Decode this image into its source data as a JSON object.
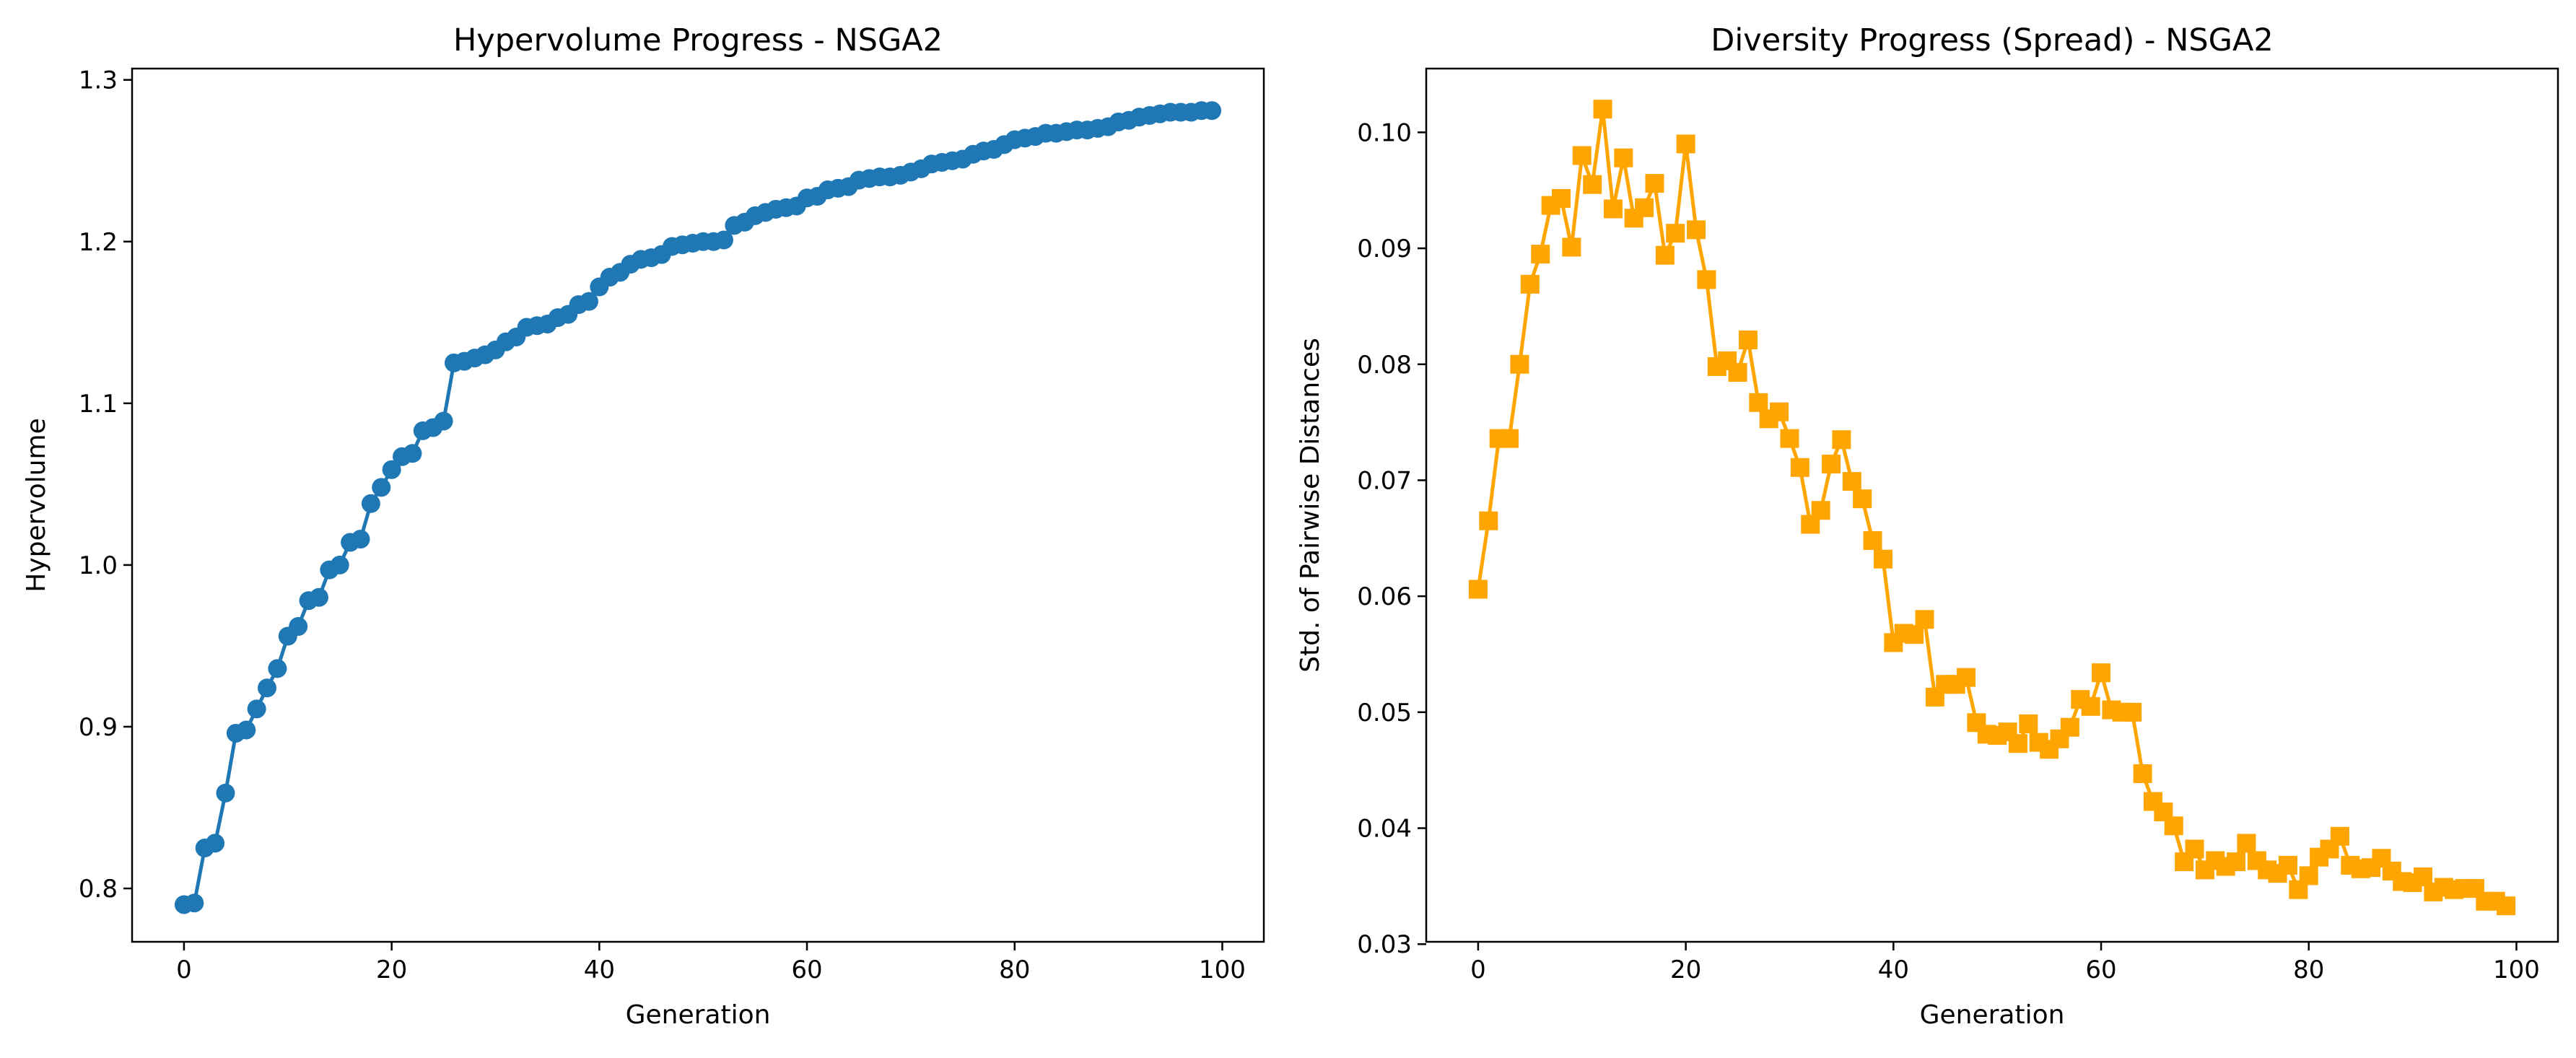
{
  "chart_data": [
    {
      "type": "line",
      "title": "Hypervolume Progress - NSGA2",
      "xlabel": "Generation",
      "ylabel": "Hypervolume",
      "xlim": [
        -5,
        104
      ],
      "ylim": [
        0.767,
        1.307
      ],
      "xticks": [
        0,
        20,
        40,
        60,
        80,
        100
      ],
      "xtick_labels": [
        "0",
        "20",
        "40",
        "60",
        "80",
        "100"
      ],
      "yticks": [
        0.8,
        0.9,
        1.0,
        1.1,
        1.2,
        1.3
      ],
      "ytick_labels": [
        "0.8",
        "0.9",
        "1.0",
        "1.1",
        "1.2",
        "1.3"
      ],
      "grid": false,
      "color": "#1f77b4",
      "marker": "circle",
      "series": [
        {
          "x": [
            0,
            1,
            2,
            3,
            4,
            5,
            6,
            7,
            8,
            9,
            10,
            11,
            12,
            13,
            14,
            15,
            16,
            17,
            18,
            19,
            20,
            21,
            22,
            23,
            24,
            25,
            26,
            27,
            28,
            29,
            30,
            31,
            32,
            33,
            34,
            35,
            36,
            37,
            38,
            39,
            40,
            41,
            42,
            43,
            44,
            45,
            46,
            47,
            48,
            49,
            50,
            51,
            52,
            53,
            54,
            55,
            56,
            57,
            58,
            59,
            60,
            61,
            62,
            63,
            64,
            65,
            66,
            67,
            68,
            69,
            70,
            71,
            72,
            73,
            74,
            75,
            76,
            77,
            78,
            79,
            80,
            81,
            82,
            83,
            84,
            85,
            86,
            87,
            88,
            89,
            90,
            91,
            92,
            93,
            94,
            95,
            96,
            97,
            98,
            99
          ],
          "y": [
            0.79,
            0.791,
            0.825,
            0.828,
            0.859,
            0.896,
            0.898,
            0.911,
            0.924,
            0.936,
            0.956,
            0.962,
            0.978,
            0.98,
            0.997,
            1.0,
            1.014,
            1.016,
            1.038,
            1.048,
            1.059,
            1.067,
            1.069,
            1.083,
            1.085,
            1.089,
            1.125,
            1.126,
            1.128,
            1.13,
            1.133,
            1.138,
            1.141,
            1.147,
            1.148,
            1.149,
            1.153,
            1.155,
            1.161,
            1.163,
            1.172,
            1.178,
            1.181,
            1.186,
            1.189,
            1.19,
            1.192,
            1.197,
            1.198,
            1.199,
            1.2,
            1.2,
            1.201,
            1.21,
            1.212,
            1.216,
            1.218,
            1.22,
            1.221,
            1.222,
            1.227,
            1.228,
            1.232,
            1.233,
            1.234,
            1.238,
            1.239,
            1.24,
            1.24,
            1.241,
            1.243,
            1.245,
            1.248,
            1.249,
            1.25,
            1.251,
            1.254,
            1.256,
            1.257,
            1.26,
            1.263,
            1.264,
            1.265,
            1.267,
            1.267,
            1.268,
            1.269,
            1.269,
            1.27,
            1.271,
            1.274,
            1.275,
            1.277,
            1.278,
            1.279,
            1.28,
            1.28,
            1.28,
            1.281,
            1.281
          ]
        }
      ]
    },
    {
      "type": "line",
      "title": "Diversity Progress (Spread) - NSGA2",
      "xlabel": "Generation",
      "ylabel": "Std. of Pairwise Distances",
      "xlim": [
        -5,
        104
      ],
      "ylim": [
        0.0302,
        0.1055
      ],
      "xticks": [
        0,
        20,
        40,
        60,
        80,
        100
      ],
      "xtick_labels": [
        "0",
        "20",
        "40",
        "60",
        "80",
        "100"
      ],
      "yticks": [
        0.03,
        0.04,
        0.05,
        0.06,
        0.07,
        0.08,
        0.09,
        0.1
      ],
      "ytick_labels": [
        "0.03",
        "0.04",
        "0.05",
        "0.06",
        "0.07",
        "0.08",
        "0.09",
        "0.10"
      ],
      "grid": false,
      "color": "#ffa500",
      "marker": "square",
      "series": [
        {
          "x": [
            0,
            1,
            2,
            3,
            4,
            5,
            6,
            7,
            8,
            9,
            10,
            11,
            12,
            13,
            14,
            15,
            16,
            17,
            18,
            19,
            20,
            21,
            22,
            23,
            24,
            25,
            26,
            27,
            28,
            29,
            30,
            31,
            32,
            33,
            34,
            35,
            36,
            37,
            38,
            39,
            40,
            41,
            42,
            43,
            44,
            45,
            46,
            47,
            48,
            49,
            50,
            51,
            52,
            53,
            54,
            55,
            56,
            57,
            58,
            59,
            60,
            61,
            62,
            63,
            64,
            65,
            66,
            67,
            68,
            69,
            70,
            71,
            72,
            73,
            74,
            75,
            76,
            77,
            78,
            79,
            80,
            81,
            82,
            83,
            84,
            85,
            86,
            87,
            88,
            89,
            90,
            91,
            92,
            93,
            94,
            95,
            96,
            97,
            98,
            99
          ],
          "y": [
            0.0606,
            0.0665,
            0.0736,
            0.0736,
            0.08,
            0.0869,
            0.0895,
            0.0937,
            0.0943,
            0.0901,
            0.098,
            0.0955,
            0.102,
            0.0934,
            0.0978,
            0.0926,
            0.0935,
            0.0956,
            0.0894,
            0.0913,
            0.099,
            0.0916,
            0.0873,
            0.0798,
            0.0803,
            0.0793,
            0.0821,
            0.0767,
            0.0753,
            0.0759,
            0.0736,
            0.0711,
            0.0662,
            0.0674,
            0.0714,
            0.0735,
            0.0699,
            0.0684,
            0.0648,
            0.0632,
            0.056,
            0.0568,
            0.0567,
            0.058,
            0.0513,
            0.0524,
            0.0524,
            0.053,
            0.0491,
            0.0481,
            0.048,
            0.0483,
            0.0473,
            0.049,
            0.0474,
            0.0468,
            0.0477,
            0.0487,
            0.0511,
            0.0505,
            0.0534,
            0.0502,
            0.05,
            0.05,
            0.0447,
            0.0423,
            0.0414,
            0.0402,
            0.0371,
            0.0382,
            0.0364,
            0.0372,
            0.0367,
            0.0371,
            0.0387,
            0.0372,
            0.0364,
            0.0361,
            0.0368,
            0.0347,
            0.0359,
            0.0375,
            0.0382,
            0.0393,
            0.0368,
            0.0365,
            0.0366,
            0.0374,
            0.0363,
            0.0354,
            0.0353,
            0.0358,
            0.0345,
            0.0349,
            0.0347,
            0.0348,
            0.0348,
            0.0337,
            0.0337,
            0.0333
          ]
        }
      ]
    }
  ]
}
